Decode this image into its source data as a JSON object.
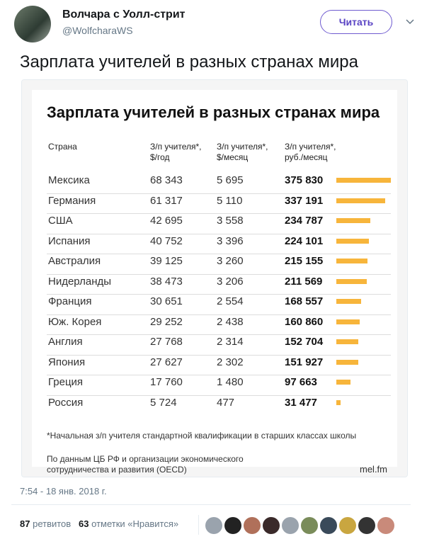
{
  "tweet": {
    "author": "Волчара с Уолл-стрит",
    "handle": "@WolfcharaWS",
    "follow_button": "Читать",
    "text": "Зарплата учителей в разных странах мира",
    "timestamp": "7:54 - 18 янв. 2018 г.",
    "retweets": "87",
    "retweets_label": "ретвитов",
    "likes": "63",
    "likes_label": "отметки «Нравится»"
  },
  "image": {
    "title": "Зарплата учителей в разных странах мира",
    "footnote": "*Начальная з/п учителя стандартной квалификации в старших классах школы",
    "source": "По данным ЦБ РФ и организации экономического\nсотрудничества и развития (OECD)",
    "brand": "mel.fm"
  },
  "table": {
    "columns": [
      "Страна",
      "З/п учителя*,\n$/год",
      "З/п учителя*,\n$/месяц",
      "З/п учителя*,\nруб./месяц"
    ],
    "rows": [
      [
        "Мексика",
        "68 343",
        "5 695",
        {
          "value": 375830,
          "label": "375 830"
        }
      ],
      [
        "Германия",
        "61 317",
        "5 110",
        {
          "value": 337191,
          "label": "337 191"
        }
      ],
      [
        "США",
        "42 695",
        "3 558",
        {
          "value": 234787,
          "label": "234 787"
        }
      ],
      [
        "Испания",
        "40 752",
        "3 396",
        {
          "value": 224101,
          "label": "224 101"
        }
      ],
      [
        "Австралия",
        "39 125",
        "3 260",
        {
          "value": 215155,
          "label": "215 155"
        }
      ],
      [
        "Нидерланды",
        "38 473",
        "3 206",
        {
          "value": 211569,
          "label": "211 569"
        }
      ],
      [
        "Франция",
        "30 651",
        "2 554",
        {
          "value": 168557,
          "label": "168 557"
        }
      ],
      [
        "Юж. Корея",
        "29 252",
        "2 438",
        {
          "value": 160860,
          "label": "160 860"
        }
      ],
      [
        "Англия",
        "27 768",
        "2 314",
        {
          "value": 152704,
          "label": "152 704"
        }
      ],
      [
        "Япония",
        "27 627",
        "2 302",
        {
          "value": 151927,
          "label": "151 927"
        }
      ],
      [
        "Греция",
        "17 760",
        "1 480",
        {
          "value": 97663,
          "label": "97 663"
        }
      ],
      [
        "Россия",
        "5 724",
        "477",
        {
          "value": 31477,
          "label": "31 477"
        }
      ]
    ],
    "bar_color": "#f7b53b"
  }
}
